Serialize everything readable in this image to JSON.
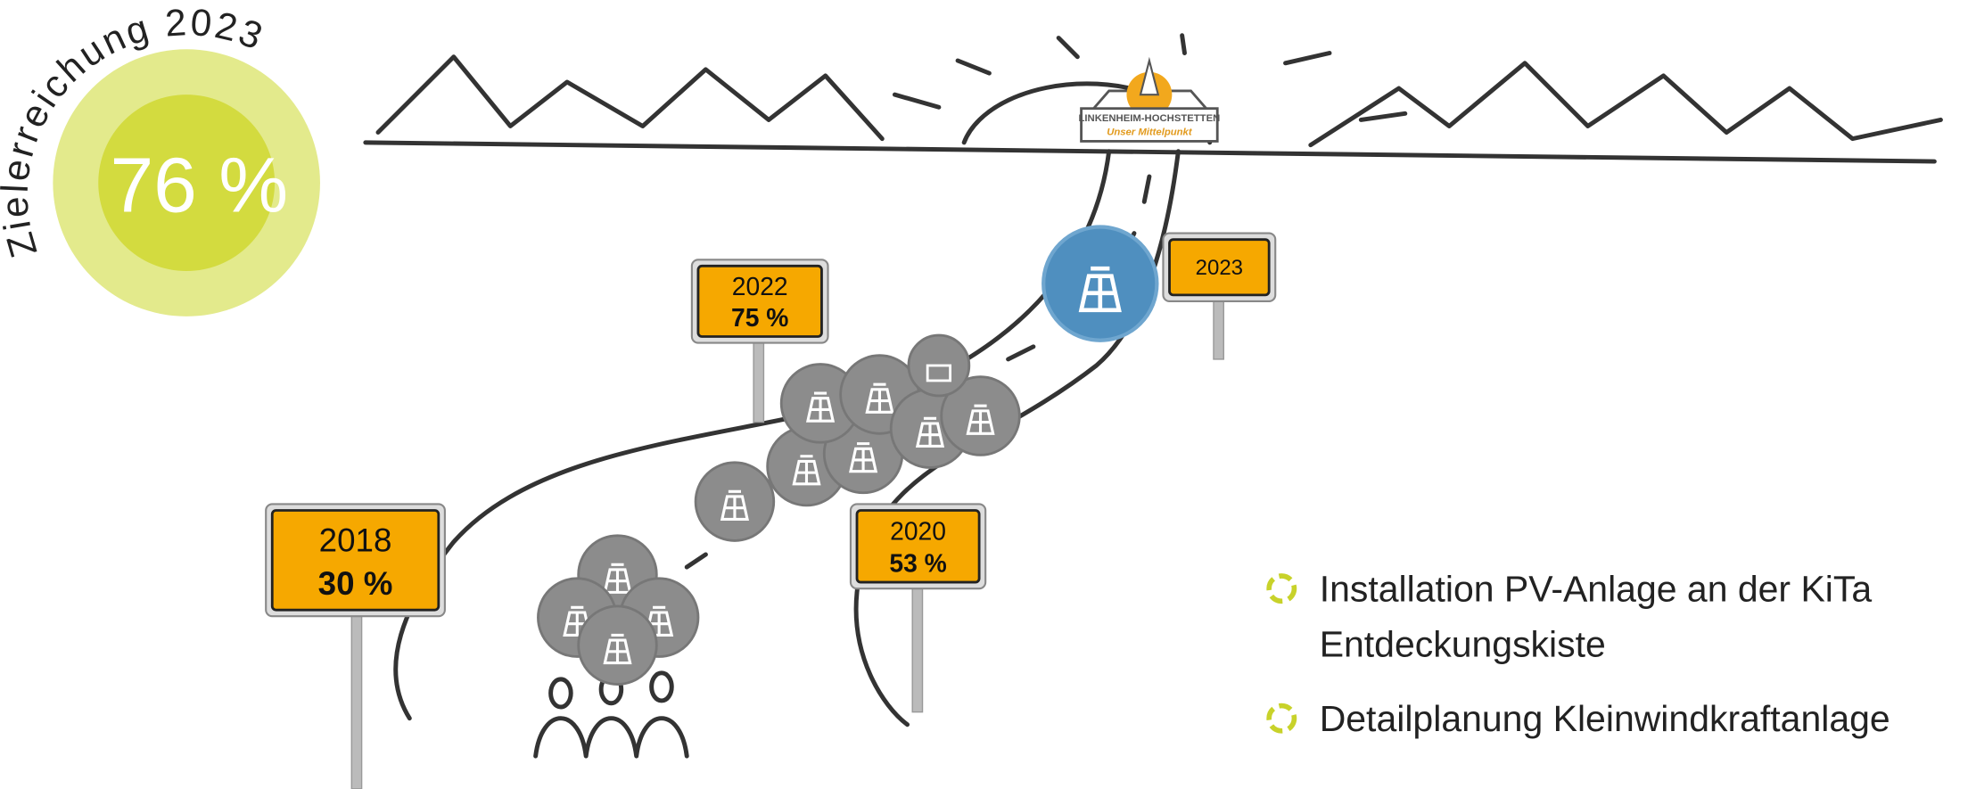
{
  "badge": {
    "arc_text": "Zielerreichung 2023",
    "value": "76 %"
  },
  "logo": {
    "name": "LINKENHEIM-HOCHSTETTEN",
    "slogan": "Unser Mittelpunkt"
  },
  "signs": [
    {
      "year": "2018",
      "percent": "30 %"
    },
    {
      "year": "2020",
      "percent": "53 %"
    },
    {
      "year": "2022",
      "percent": "75 %"
    },
    {
      "year": "2023"
    }
  ],
  "items": [
    {
      "lines": [
        "Installation PV-Anlage an der KiTa",
        "Entdeckungskiste"
      ]
    },
    {
      "lines": [
        "Detailplanung Kleinwindkraftanlage"
      ]
    }
  ]
}
